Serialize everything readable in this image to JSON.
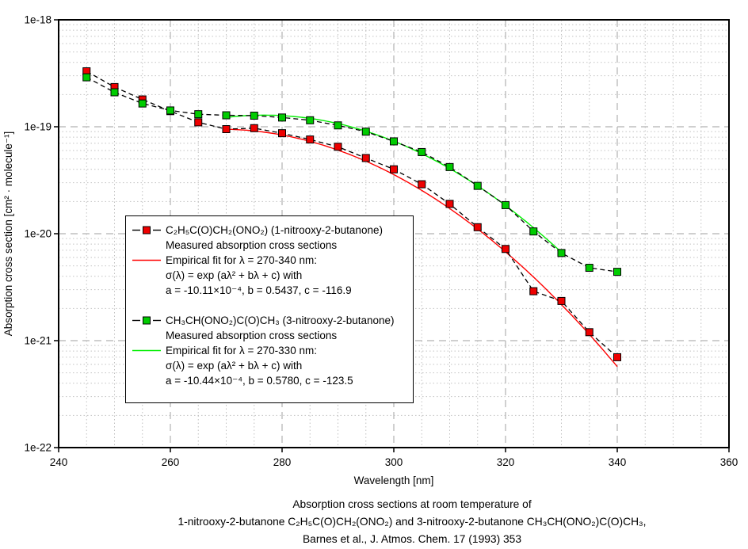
{
  "colors": {
    "series1_marker": "#ee0000",
    "series1_fit": "#ff0000",
    "series2_marker": "#00cc00",
    "series2_fit": "#00ee00",
    "measured_line": "#000000",
    "grid_major": "#b2b2b2",
    "grid_minor": "#c2c2c2",
    "axis": "#000000",
    "background": "#ffffff"
  },
  "chart_data": {
    "type": "line",
    "title": "",
    "xlabel": "Wavelength [nm]",
    "ylabel": "Absorption cross section [cm² · molecule⁻¹]",
    "x_range": [
      240,
      360
    ],
    "y_range": [
      1e-22,
      1e-18
    ],
    "y_scale": "log",
    "grid": "major-dashed, minor-dotted",
    "x_ticks": [
      240,
      260,
      280,
      300,
      320,
      340,
      360
    ],
    "x_minor_step": 5,
    "y_ticks": [
      {
        "label": "1e-18",
        "value": 1e-18
      },
      {
        "label": "1e-19",
        "value": 1e-19
      },
      {
        "label": "1e-20",
        "value": 1e-20
      },
      {
        "label": "1e-21",
        "value": 1e-21
      },
      {
        "label": "1e-22",
        "value": 1e-22
      }
    ],
    "x": [
      245,
      250,
      255,
      260,
      265,
      270,
      275,
      280,
      285,
      290,
      295,
      300,
      305,
      310,
      315,
      320,
      325,
      330,
      335,
      340
    ],
    "series": [
      {
        "name": "C₂H₅C(O)CH₂(ONO₂) (1-nitrooxy-2-butanone) measured",
        "marker": "square",
        "values": [
          3.3e-19,
          2.35e-19,
          1.8e-19,
          1.4e-19,
          1.1e-19,
          9.5e-20,
          9.7e-20,
          8.7e-20,
          7.6e-20,
          6.5e-20,
          5.1e-20,
          4e-20,
          2.9e-20,
          1.9e-20,
          1.15e-20,
          7.2e-21,
          2.9e-21,
          2.35e-21,
          1.2e-21,
          7e-22
        ]
      },
      {
        "name": "CH₃CH(ONO₂)C(O)CH₃ (3-nitrooxy-2-butanone) measured",
        "marker": "square",
        "values": [
          2.9e-19,
          2.1e-19,
          1.65e-19,
          1.42e-19,
          1.31e-19,
          1.28e-19,
          1.27e-19,
          1.22e-19,
          1.15e-19,
          1.03e-19,
          9e-20,
          7.3e-20,
          5.8e-20,
          4.2e-20,
          2.8e-20,
          1.85e-20,
          1.05e-20,
          6.6e-21,
          4.8e-21,
          4.4e-21
        ]
      }
    ],
    "fits": [
      {
        "name": "Empirical fit 1-nitrooxy-2-butanone",
        "form": "sigma(lambda)=exp(a*lambda^2+b*lambda+c)",
        "a": -0.001011,
        "b": 0.5437,
        "c": -116.9,
        "range": [
          270,
          340
        ]
      },
      {
        "name": "Empirical fit 3-nitrooxy-2-butanone",
        "form": "sigma(lambda)=exp(a*lambda^2+b*lambda+c)",
        "a": -0.001044,
        "b": 0.578,
        "c": -123.5,
        "range": [
          270,
          330
        ]
      }
    ],
    "legend_position": "inside-left-center"
  },
  "legend": {
    "series1": {
      "title": "C₂H₅C(O)CH₂(ONO₂) (1-nitrooxy-2-butanone)",
      "measured_label": "Measured absorption cross sections",
      "fit_label": "Empirical fit for λ = 270-340 nm:",
      "formula": "σ(λ) = exp (aλ² + bλ + c) with",
      "coefficients": "a = -10.11×10⁻⁴, b = 0.5437, c = -116.9"
    },
    "series2": {
      "title": "CH₃CH(ONO₂)C(O)CH₃ (3-nitrooxy-2-butanone)",
      "measured_label": "Measured absorption cross sections",
      "fit_label": "Empirical fit for λ = 270-330 nm:",
      "formula": "σ(λ) = exp (aλ² + bλ + c) with",
      "coefficients": "a = -10.44×10⁻⁴, b = 0.5780, c = -123.5"
    }
  },
  "caption": {
    "line1": "Absorption cross sections at room temperature of",
    "line2": "1-nitrooxy-2-butanone C₂H₅C(O)CH₂(ONO₂) and 3-nitrooxy-2-butanone CH₃CH(ONO₂)C(O)CH₃,",
    "line3": "Barnes et al., J. Atmos. Chem. 17 (1993) 353"
  }
}
